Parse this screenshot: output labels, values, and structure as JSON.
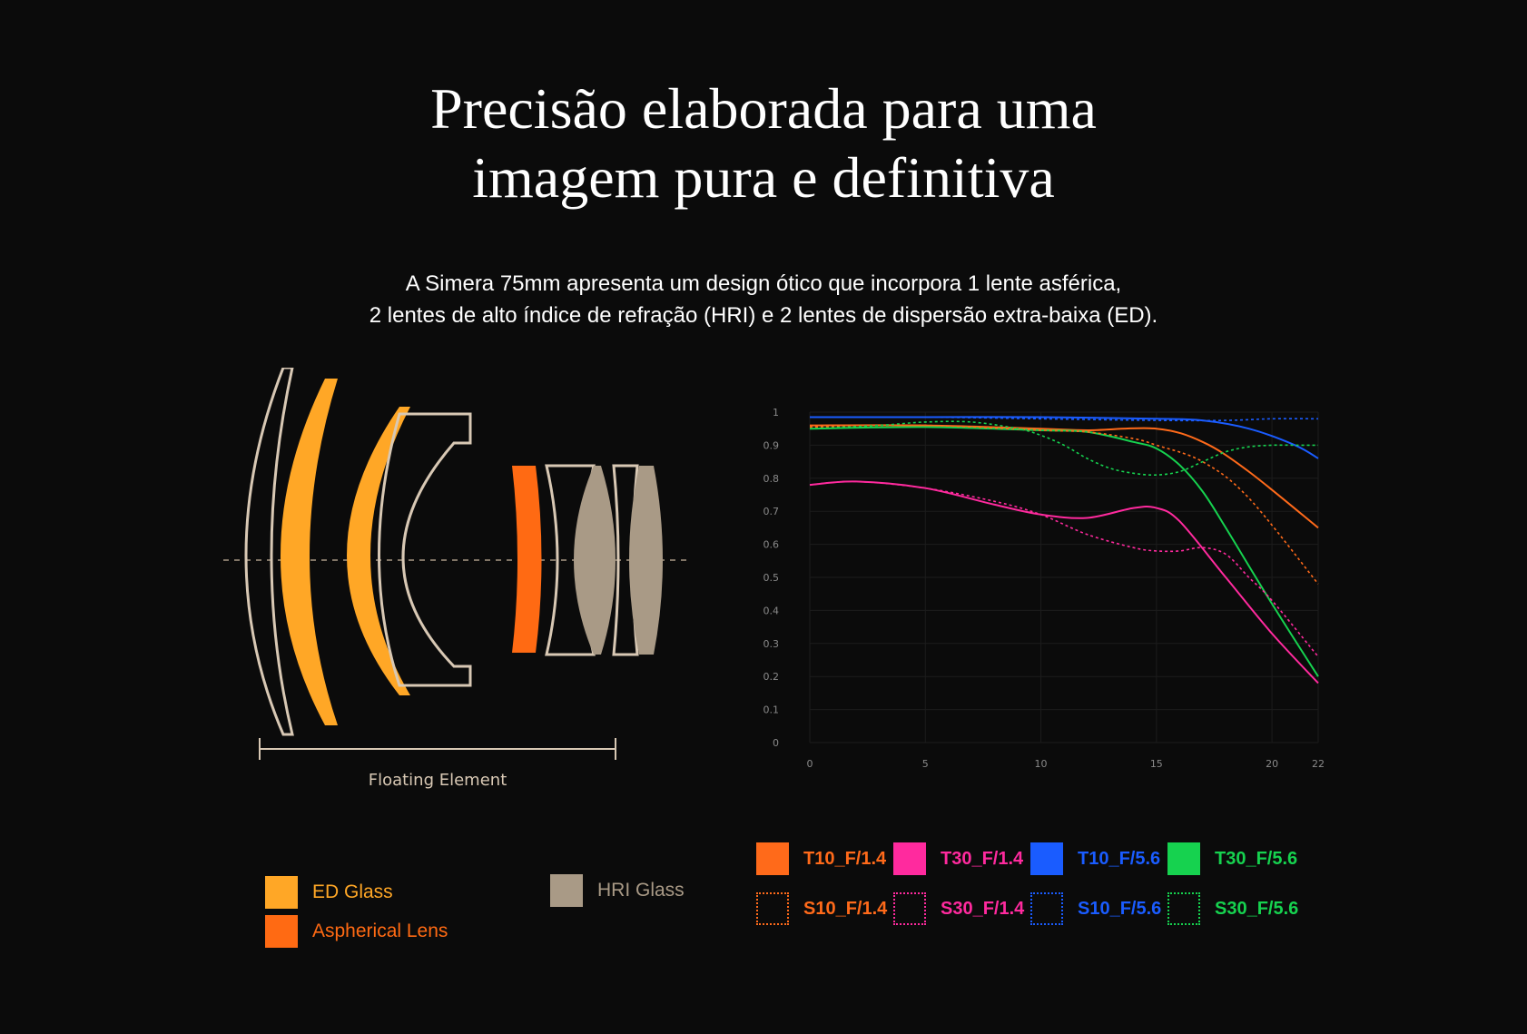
{
  "header": {
    "title_line1": "Precisão elaborada para uma",
    "title_line2": "imagem pura e definitiva",
    "subtitle_line1": "A Simera 75mm apresenta um design ótico que incorpora 1 lente asférica,",
    "subtitle_line2": "2 lentes de alto índice de refração (HRI) e 2 lentes de dispersão extra-baixa (ED)."
  },
  "lens_diagram": {
    "floating_label": "Floating Element",
    "colors": {
      "ed": "#ffa726",
      "aspherical": "#ff6a13",
      "hri": "#a99a86",
      "outline": "#d8c8b4"
    },
    "legend": [
      {
        "label": "ED Glass",
        "color": "#ffa726"
      },
      {
        "label": "Aspherical Lens",
        "color": "#ff6a13"
      },
      {
        "label": "HRI Glass",
        "color": "#a99a86"
      }
    ]
  },
  "chart_data": {
    "type": "line",
    "xlim": [
      0,
      22
    ],
    "ylim": [
      0,
      1
    ],
    "x_ticks": [
      "0",
      "5",
      "10",
      "15",
      "20",
      "22"
    ],
    "y_ticks": [
      "0",
      "0.1",
      "0.2",
      "0.3",
      "0.4",
      "0.5",
      "0.6",
      "0.7",
      "0.8",
      "0.9",
      "1"
    ],
    "grid": true,
    "legend_position": "bottom",
    "series": [
      {
        "name": "T10_F/1.4",
        "color": "#ff6a1a",
        "dashed": false,
        "x": [
          0,
          5,
          10,
          12,
          15,
          17,
          19,
          22
        ],
        "y": [
          0.96,
          0.96,
          0.95,
          0.945,
          0.95,
          0.91,
          0.82,
          0.65
        ]
      },
      {
        "name": "T30_F/1.4",
        "color": "#ff2a9e",
        "dashed": false,
        "x": [
          0,
          2,
          5,
          8,
          10,
          12,
          14,
          15,
          16,
          18,
          20,
          22
        ],
        "y": [
          0.78,
          0.79,
          0.77,
          0.72,
          0.69,
          0.68,
          0.71,
          0.71,
          0.67,
          0.5,
          0.33,
          0.18
        ]
      },
      {
        "name": "T10_F/5.6",
        "color": "#1a5cff",
        "dashed": false,
        "x": [
          0,
          5,
          10,
          15,
          17,
          19,
          21,
          22
        ],
        "y": [
          0.985,
          0.985,
          0.985,
          0.98,
          0.975,
          0.95,
          0.9,
          0.86
        ]
      },
      {
        "name": "T30_F/5.6",
        "color": "#16d24f",
        "dashed": false,
        "x": [
          0,
          5,
          10,
          12,
          14,
          15,
          16,
          17,
          18,
          20,
          22
        ],
        "y": [
          0.95,
          0.955,
          0.945,
          0.94,
          0.91,
          0.89,
          0.84,
          0.76,
          0.65,
          0.42,
          0.2
        ]
      },
      {
        "name": "S10_F/1.4",
        "color": "#ff6a1a",
        "dashed": true,
        "x": [
          0,
          5,
          10,
          12,
          14,
          15,
          17,
          19,
          22
        ],
        "y": [
          0.955,
          0.96,
          0.945,
          0.94,
          0.92,
          0.9,
          0.85,
          0.74,
          0.48
        ]
      },
      {
        "name": "S30_F/1.4",
        "color": "#ff2a9e",
        "dashed": true,
        "x": [
          0,
          2,
          5,
          8,
          10,
          12,
          14,
          15,
          16,
          17,
          18,
          19,
          20,
          22
        ],
        "y": [
          0.78,
          0.79,
          0.77,
          0.73,
          0.69,
          0.63,
          0.59,
          0.58,
          0.58,
          0.59,
          0.57,
          0.5,
          0.43,
          0.26
        ]
      },
      {
        "name": "S10_F/5.6",
        "color": "#1a5cff",
        "dashed": true,
        "x": [
          0,
          5,
          10,
          15,
          18,
          20,
          22
        ],
        "y": [
          0.985,
          0.985,
          0.98,
          0.975,
          0.975,
          0.98,
          0.98
        ]
      },
      {
        "name": "S30_F/5.6",
        "color": "#16d24f",
        "dashed": true,
        "x": [
          0,
          3,
          5,
          7,
          9,
          10,
          11,
          12,
          13,
          14,
          15,
          16,
          17,
          18,
          19,
          20,
          21,
          22
        ],
        "y": [
          0.95,
          0.96,
          0.97,
          0.97,
          0.95,
          0.93,
          0.9,
          0.86,
          0.83,
          0.815,
          0.81,
          0.82,
          0.85,
          0.88,
          0.895,
          0.9,
          0.9,
          0.9
        ]
      }
    ]
  }
}
